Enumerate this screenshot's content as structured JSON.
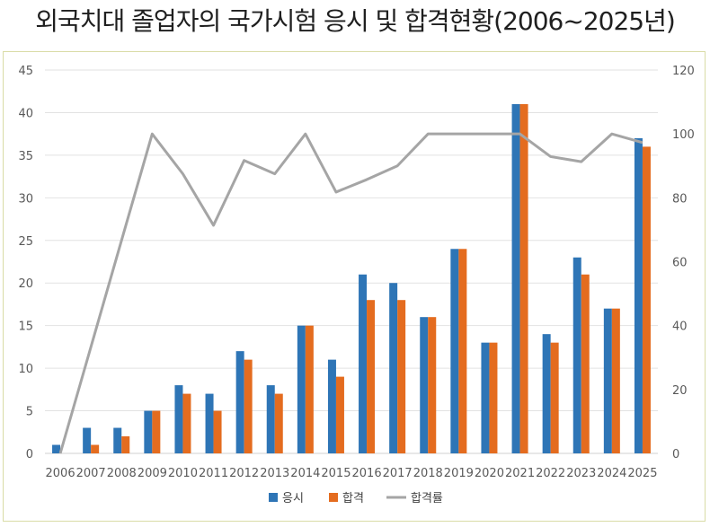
{
  "title": "외국치대 졸업자의 국가시험 응시 및 합격현황(2006~2025년)",
  "chart_data": {
    "type": "bar",
    "categories": [
      "2006",
      "2007",
      "2008",
      "2009",
      "2010",
      "2011",
      "2012",
      "2013",
      "2014",
      "2015",
      "2016",
      "2017",
      "2018",
      "2019",
      "2020",
      "2021",
      "2022",
      "2023",
      "2024",
      "2025"
    ],
    "series": [
      {
        "name": "응시",
        "type": "bar",
        "axis": "left",
        "color": "#2e75b6",
        "values": [
          1,
          3,
          3,
          5,
          8,
          7,
          12,
          8,
          15,
          11,
          21,
          20,
          16,
          24,
          13,
          41,
          14,
          23,
          17,
          37
        ]
      },
      {
        "name": "합격",
        "type": "bar",
        "axis": "left",
        "color": "#e46c1f",
        "values": [
          0,
          1,
          2,
          5,
          7,
          5,
          11,
          7,
          15,
          9,
          18,
          18,
          16,
          24,
          13,
          41,
          13,
          21,
          17,
          36
        ]
      },
      {
        "name": "합격률",
        "type": "line",
        "axis": "right",
        "color": "#a5a5a5",
        "values": [
          0,
          33.3,
          66.7,
          100,
          87.5,
          71.4,
          91.7,
          87.5,
          100,
          81.8,
          85.7,
          90,
          100,
          100,
          100,
          100,
          92.9,
          91.3,
          100,
          97.3
        ]
      }
    ],
    "y_left": {
      "min": 0,
      "max": 45,
      "step": 5
    },
    "y_right": {
      "min": 0,
      "max": 120,
      "step": 20
    },
    "grid": true,
    "legend_position": "bottom"
  }
}
